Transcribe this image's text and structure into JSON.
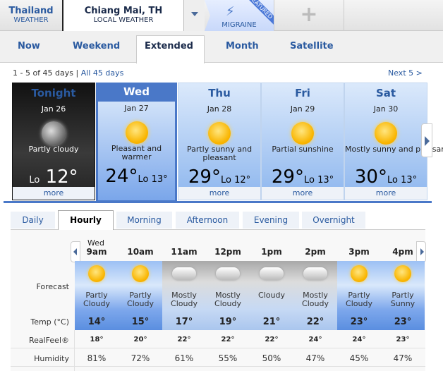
{
  "topbar": {
    "country": "Thailand",
    "country_sub": "WEATHER",
    "city": "Chiang Mai, TH",
    "city_sub": "LOCAL WEATHER",
    "featured": "FEATURED",
    "migraine": "MIGRAINE",
    "add": "+"
  },
  "nav": {
    "tabs": [
      "Now",
      "Weekend",
      "Extended",
      "Month",
      "Satellite"
    ],
    "active": "Extended"
  },
  "range": {
    "text": "1 - 5 of 45 days",
    "all": "All 45 days",
    "next": "Next 5 >"
  },
  "days": [
    {
      "day": "Tonight",
      "date": "Jan 26",
      "desc": "Partly cloudy",
      "lo_label": "Lo",
      "temp": "12°",
      "icon": "moon-partly-cloudy",
      "more": "more"
    },
    {
      "day": "Wed",
      "date": "Jan 27",
      "desc": "Pleasant and warmer",
      "temp": "24°",
      "lo": "Lo 13°",
      "icon": "sun-icon",
      "more": ""
    },
    {
      "day": "Thu",
      "date": "Jan 28",
      "desc": "Partly sunny and pleasant",
      "temp": "29°",
      "lo": "Lo 12°",
      "icon": "sun-icon",
      "more": "more"
    },
    {
      "day": "Fri",
      "date": "Jan 29",
      "desc": "Partial sunshine",
      "temp": "29°",
      "lo": "Lo 13°",
      "icon": "sun-icon",
      "more": "more"
    },
    {
      "day": "Sat",
      "date": "Jan 30",
      "desc": "Mostly sunny and pleasant",
      "temp": "30°",
      "lo": "Lo 13°",
      "icon": "sun-icon",
      "more": "more"
    }
  ],
  "subtabs": [
    "Daily",
    "Hourly",
    "Morning",
    "Afternoon",
    "Evening",
    "Overnight"
  ],
  "hourly": {
    "day": "Wed",
    "labels": {
      "forecast": "Forecast",
      "temp": "Temp (°C)",
      "realfeel": "RealFeel®",
      "humidity": "Humidity"
    },
    "hours": [
      {
        "time": "9am",
        "desc": "Partly Cloudy",
        "temp": "14°",
        "realfeel": "18°",
        "humidity": "81%",
        "icon": "sun"
      },
      {
        "time": "10am",
        "desc": "Partly Cloudy",
        "temp": "15°",
        "realfeel": "20°",
        "humidity": "72%",
        "icon": "sun"
      },
      {
        "time": "11am",
        "desc": "Mostly Cloudy",
        "temp": "17°",
        "realfeel": "22°",
        "humidity": "61%",
        "icon": "cloud"
      },
      {
        "time": "12pm",
        "desc": "Mostly Cloudy",
        "temp": "19°",
        "realfeel": "22°",
        "humidity": "55%",
        "icon": "cloud"
      },
      {
        "time": "1pm",
        "desc": "Cloudy",
        "temp": "21°",
        "realfeel": "22°",
        "humidity": "50%",
        "icon": "cloud"
      },
      {
        "time": "2pm",
        "desc": "Mostly Cloudy",
        "temp": "22°",
        "realfeel": "24°",
        "humidity": "47%",
        "icon": "cloud"
      },
      {
        "time": "3pm",
        "desc": "Partly Cloudy",
        "temp": "23°",
        "realfeel": "24°",
        "humidity": "45%",
        "icon": "sun"
      },
      {
        "time": "4pm",
        "desc": "Partly Sunny",
        "temp": "23°",
        "realfeel": "23°",
        "humidity": "47%",
        "icon": "sun"
      }
    ]
  }
}
